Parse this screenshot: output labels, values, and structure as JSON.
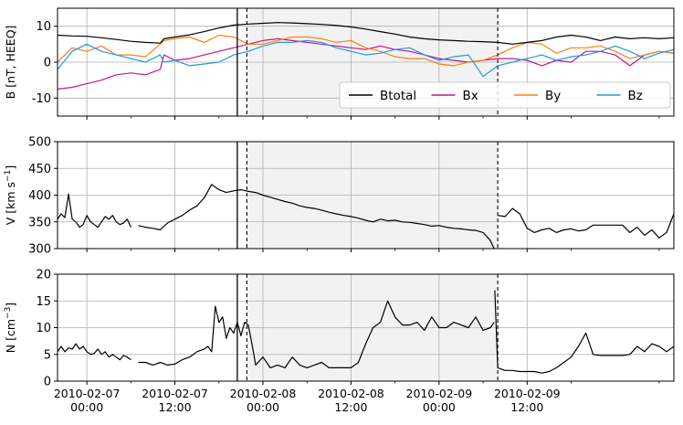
{
  "chart_data": [
    {
      "type": "line",
      "title": "",
      "xlabel": "",
      "ylabel": "B [nT, HEEQ]",
      "ylim": [
        -15,
        15
      ],
      "yticks": [
        -10,
        0,
        10
      ],
      "grid": true,
      "legend_position": "lower-right",
      "legend_columns": 4,
      "series": [
        {
          "name": "Btotal",
          "color": "#000000",
          "x": [
            0,
            2,
            4,
            6,
            8,
            10,
            12,
            14,
            14.5,
            16,
            18,
            20,
            22,
            24,
            26,
            28,
            30,
            32,
            34,
            36,
            38,
            40,
            42,
            44,
            46,
            48,
            50,
            52,
            54,
            56,
            58,
            60,
            62,
            64,
            66,
            68,
            70,
            72,
            74,
            76,
            78,
            80,
            82,
            84
          ],
          "values": [
            7.5,
            7.3,
            7.2,
            6.8,
            6.3,
            5.8,
            5.5,
            5.3,
            6.5,
            7.0,
            7.6,
            8.5,
            9.5,
            10.3,
            10.6,
            10.8,
            11.0,
            10.9,
            10.7,
            10.5,
            10.2,
            9.8,
            9.2,
            8.5,
            7.8,
            7.0,
            6.5,
            6.2,
            6.0,
            5.8,
            5.7,
            5.5,
            5.0,
            5.5,
            6.0,
            7.0,
            7.5,
            7.0,
            6.0,
            7.0,
            6.5,
            6.8,
            6.5,
            6.8
          ]
        },
        {
          "name": "Bx",
          "color": "#c71585",
          "x": [
            0,
            2,
            4,
            6,
            8,
            10,
            12,
            14,
            14.5,
            16,
            18,
            20,
            22,
            24,
            26,
            28,
            30,
            32,
            34,
            36,
            38,
            40,
            42,
            44,
            46,
            48,
            50,
            52,
            54,
            56,
            58,
            60,
            62,
            64,
            66,
            68,
            70,
            72,
            74,
            76,
            78,
            80,
            82,
            84
          ],
          "values": [
            -7.5,
            -7.0,
            -6.0,
            -5.0,
            -3.5,
            -3.0,
            -3.5,
            -2.0,
            2.0,
            0.5,
            1.0,
            2.0,
            3.0,
            4.0,
            5.0,
            6.0,
            6.5,
            6.0,
            5.5,
            5.0,
            4.5,
            4.0,
            3.5,
            4.5,
            3.5,
            3.0,
            2.0,
            1.0,
            0.5,
            0.0,
            0.5,
            1.0,
            1.0,
            0.5,
            -1.0,
            0.5,
            0.0,
            3.0,
            3.0,
            2.0,
            -1.0,
            2.0,
            3.0,
            2.5
          ]
        },
        {
          "name": "By",
          "color": "#ff7f0e",
          "x": [
            0,
            2,
            4,
            6,
            8,
            10,
            12,
            14,
            14.5,
            16,
            18,
            20,
            22,
            24,
            26,
            28,
            30,
            32,
            34,
            36,
            38,
            40,
            42,
            44,
            46,
            48,
            50,
            52,
            54,
            56,
            58,
            60,
            62,
            64,
            66,
            68,
            70,
            72,
            74,
            76,
            78,
            80,
            82,
            84
          ],
          "values": [
            0.0,
            4.0,
            3.0,
            4.5,
            2.0,
            2.0,
            1.5,
            5.0,
            6.0,
            6.5,
            7.0,
            5.5,
            7.5,
            7.0,
            5.0,
            5.0,
            6.0,
            7.0,
            7.0,
            6.5,
            5.5,
            6.0,
            4.0,
            3.0,
            1.5,
            1.0,
            1.0,
            -0.5,
            -1.0,
            0.0,
            0.5,
            2.0,
            4.0,
            5.5,
            5.0,
            2.5,
            4.0,
            4.0,
            4.5,
            3.0,
            1.0,
            2.0,
            3.0,
            2.5
          ]
        },
        {
          "name": "Bz",
          "color": "#1f9ae8",
          "x": [
            0,
            2,
            4,
            6,
            8,
            10,
            12,
            14,
            14.5,
            16,
            18,
            20,
            22,
            24,
            26,
            28,
            30,
            32,
            34,
            36,
            38,
            40,
            42,
            44,
            46,
            48,
            50,
            52,
            54,
            56,
            58,
            60,
            62,
            64,
            66,
            68,
            70,
            72,
            74,
            76,
            78,
            80,
            82,
            84
          ],
          "values": [
            -2.0,
            3.0,
            5.0,
            3.0,
            2.0,
            1.0,
            0.0,
            2.0,
            0.0,
            0.5,
            -1.0,
            -0.5,
            0.0,
            2.0,
            3.0,
            4.5,
            5.5,
            5.5,
            6.0,
            5.5,
            4.0,
            3.0,
            2.0,
            2.5,
            3.5,
            4.0,
            2.0,
            0.5,
            1.5,
            2.0,
            -4.0,
            -1.0,
            0.0,
            1.0,
            2.0,
            0.5,
            1.5,
            2.0,
            3.0,
            4.5,
            3.0,
            1.0,
            2.5,
            3.5
          ]
        }
      ]
    },
    {
      "type": "line",
      "title": "",
      "xlabel": "",
      "ylabel": "V [km s⁻¹]",
      "ylim": [
        300,
        500
      ],
      "yticks": [
        300,
        350,
        400,
        450,
        500
      ],
      "grid": true,
      "series": [
        {
          "name": "",
          "color": "#000000",
          "segments": [
            {
              "x": [
                0,
                0.5,
                1,
                1.5,
                2,
                2.5,
                3,
                3.5,
                4,
                4.5,
                5,
                5.5,
                6,
                6.5,
                7,
                7.5,
                8,
                8.5,
                9,
                9.5,
                10
              ],
              "values": [
                355,
                365,
                358,
                402,
                355,
                350,
                340,
                345,
                362,
                350,
                345,
                340,
                350,
                360,
                355,
                362,
                350,
                345,
                348,
                355,
                340
              ]
            },
            {
              "x": [
                11,
                12,
                13,
                14,
                15,
                16,
                17,
                18,
                19,
                20,
                21,
                22,
                23,
                24,
                25,
                26,
                27,
                28,
                29,
                30,
                31,
                32,
                33,
                34,
                35,
                36,
                37,
                38,
                39,
                40,
                41,
                42,
                43,
                44,
                45,
                46,
                47,
                48,
                49,
                50,
                51,
                52,
                53,
                54,
                55,
                56,
                57,
                58,
                59,
                59.5
              ],
              "values": [
                343,
                340,
                338,
                335,
                348,
                355,
                362,
                372,
                380,
                395,
                420,
                410,
                405,
                408,
                410,
                407,
                405,
                400,
                396,
                392,
                388,
                385,
                380,
                377,
                375,
                372,
                368,
                365,
                362,
                360,
                357,
                353,
                350,
                355,
                352,
                353,
                350,
                349,
                347,
                345,
                342,
                343,
                340,
                338,
                337,
                335,
                334,
                330,
                315,
                300
              ]
            },
            {
              "x": [
                60,
                61,
                62,
                63,
                64,
                65,
                66,
                67,
                68,
                69,
                70,
                71,
                72,
                73,
                74,
                75,
                76,
                77,
                78,
                79,
                80,
                81,
                82,
                83,
                84
              ],
              "values": [
                362,
                360,
                375,
                365,
                338,
                330,
                335,
                338,
                330,
                335,
                337,
                333,
                335,
                344,
                344,
                344,
                344,
                344,
                330,
                340,
                325,
                335,
                320,
                330,
                365
              ]
            }
          ]
        }
      ]
    },
    {
      "type": "line",
      "title": "",
      "xlabel": "",
      "ylabel": "N [cm⁻³]",
      "ylim": [
        0,
        20
      ],
      "yticks": [
        0,
        5,
        10,
        15,
        20
      ],
      "grid": true,
      "series": [
        {
          "name": "",
          "color": "#000000",
          "segments": [
            {
              "x": [
                0,
                0.5,
                1,
                1.5,
                2,
                2.5,
                3,
                3.5,
                4,
                4.5,
                5,
                5.5,
                6,
                6.5,
                7,
                7.5,
                8,
                8.5,
                9,
                9.5,
                10
              ],
              "values": [
                5.5,
                6.5,
                5.5,
                6.2,
                6.0,
                7.0,
                6.0,
                6.5,
                5.5,
                5.0,
                5.2,
                6.0,
                5.0,
                5.5,
                4.5,
                5.0,
                4.5,
                4.0,
                4.8,
                4.5,
                4.0
              ]
            },
            {
              "x": [
                11,
                12,
                13,
                14,
                15,
                16,
                17,
                18,
                18.5,
                19,
                20,
                20.5,
                21,
                21.5,
                22,
                22.5,
                23,
                23.5,
                24,
                24.5,
                25,
                25.5,
                26,
                26.5,
                27,
                28,
                29,
                30,
                31,
                32,
                33,
                34,
                35,
                36,
                37,
                38,
                39,
                40,
                41,
                42,
                43,
                44,
                45,
                46,
                47,
                48,
                49,
                50,
                51,
                52,
                53,
                54,
                55,
                56,
                57,
                58,
                59,
                59.5
              ],
              "values": [
                3.5,
                3.5,
                3.0,
                3.5,
                3.0,
                3.2,
                4.0,
                4.5,
                5.0,
                5.5,
                6.0,
                6.5,
                5.5,
                14.0,
                11.0,
                12.0,
                8.0,
                10.0,
                9.0,
                11.0,
                8.5,
                11.0,
                10.5,
                7.0,
                3.0,
                4.5,
                2.5,
                3.0,
                2.5,
                4.5,
                3.0,
                2.5,
                3.0,
                3.5,
                2.5,
                2.5,
                2.5,
                2.5,
                3.5,
                7.0,
                10.0,
                11.0,
                15.0,
                12.0,
                10.5,
                10.5,
                11.0,
                9.5,
                12.0,
                10.0,
                10.0,
                11.0,
                10.5,
                10.0,
                12.0,
                9.5,
                10.0,
                11.0
              ]
            },
            {
              "x": [
                59.6,
                60,
                61,
                62,
                63,
                64,
                65,
                66,
                67,
                68,
                69,
                70,
                71,
                72,
                73,
                74,
                75,
                76,
                77,
                78,
                79,
                80,
                81,
                82,
                83,
                84
              ],
              "values": [
                17.0,
                2.5,
                2.0,
                2.0,
                1.8,
                1.8,
                1.8,
                1.5,
                1.8,
                2.5,
                3.5,
                4.5,
                6.5,
                9.0,
                5.0,
                4.8,
                4.8,
                4.8,
                4.8,
                5.0,
                6.5,
                5.5,
                7.0,
                6.5,
                5.5,
                6.5
              ]
            }
          ]
        }
      ]
    }
  ],
  "x_axis": {
    "unit": "hours since 2010-02-06 20:00",
    "xlim": [
      0,
      84
    ],
    "ticks": [
      {
        "x": 4,
        "line1": "2010-02-07",
        "line2": "00:00"
      },
      {
        "x": 16,
        "line1": "2010-02-07",
        "line2": "12:00"
      },
      {
        "x": 28,
        "line1": "2010-02-08",
        "line2": "00:00"
      },
      {
        "x": 40,
        "line1": "2010-02-08",
        "line2": "12:00"
      },
      {
        "x": 52,
        "line1": "2010-02-09",
        "line2": "00:00"
      },
      {
        "x": 64,
        "line1": "2010-02-09",
        "line2": "12:00"
      }
    ],
    "minor_ticks": [
      10,
      22,
      34,
      46,
      58,
      70,
      82
    ]
  },
  "event_markers": {
    "shock_line_x": 24.5,
    "shaded_region": {
      "start": 25.8,
      "end": 60,
      "color": "#f2f2f2"
    }
  }
}
